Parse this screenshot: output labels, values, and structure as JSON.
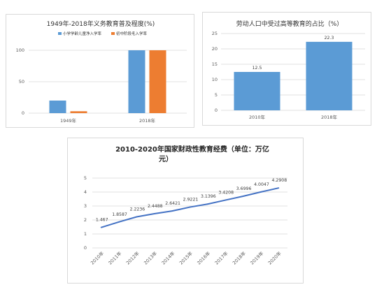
{
  "chart_data": [
    {
      "type": "bar",
      "title": "1949年-2018年义务教育普及程度(%)",
      "categories": [
        "1949年",
        "2018年"
      ],
      "series": [
        {
          "name": "小学学龄儿童净入学率",
          "values": [
            20,
            100
          ],
          "color": "#5b9bd5"
        },
        {
          "name": "初中阶段毛入学率",
          "values": [
            3,
            100
          ],
          "color": "#ed7d31"
        }
      ],
      "y_ticks": [
        0,
        50,
        100
      ],
      "ylim": [
        0,
        110
      ],
      "grid": true,
      "legend": "top"
    },
    {
      "type": "bar",
      "title": "劳动人口中受过高等教育的占比（%）",
      "categories": [
        "2010年",
        "2018年"
      ],
      "values": [
        12.5,
        22.3
      ],
      "data_labels": [
        "12.5",
        "22.3"
      ],
      "color": "#5b9bd5",
      "y_ticks": [
        0,
        5,
        10,
        15,
        20,
        25
      ],
      "ylim": [
        0,
        25
      ],
      "grid": true
    },
    {
      "type": "line",
      "title": "2010-2020年国家财政性教育经费（单位：万亿元）",
      "categories": [
        "2010年",
        "2011年",
        "2012年",
        "2013年",
        "2014年",
        "2015年",
        "2016年",
        "2017年",
        "2018年",
        "2019年",
        "2020年"
      ],
      "values": [
        1.467,
        1.8587,
        2.2236,
        2.4488,
        2.6421,
        2.9221,
        3.1396,
        3.4208,
        3.6996,
        4.0047,
        4.2908
      ],
      "data_labels": [
        "1.467",
        "1.8587",
        "2.2236",
        "2.4488",
        "2.6421",
        "2.9221",
        "3.1396",
        "3.4208",
        "3.6996",
        "4.0047",
        "4.2908"
      ],
      "color": "#4472c4",
      "y_ticks": [
        0,
        1,
        2,
        3,
        4,
        5
      ],
      "ylim": [
        0,
        5
      ],
      "grid": true
    }
  ]
}
